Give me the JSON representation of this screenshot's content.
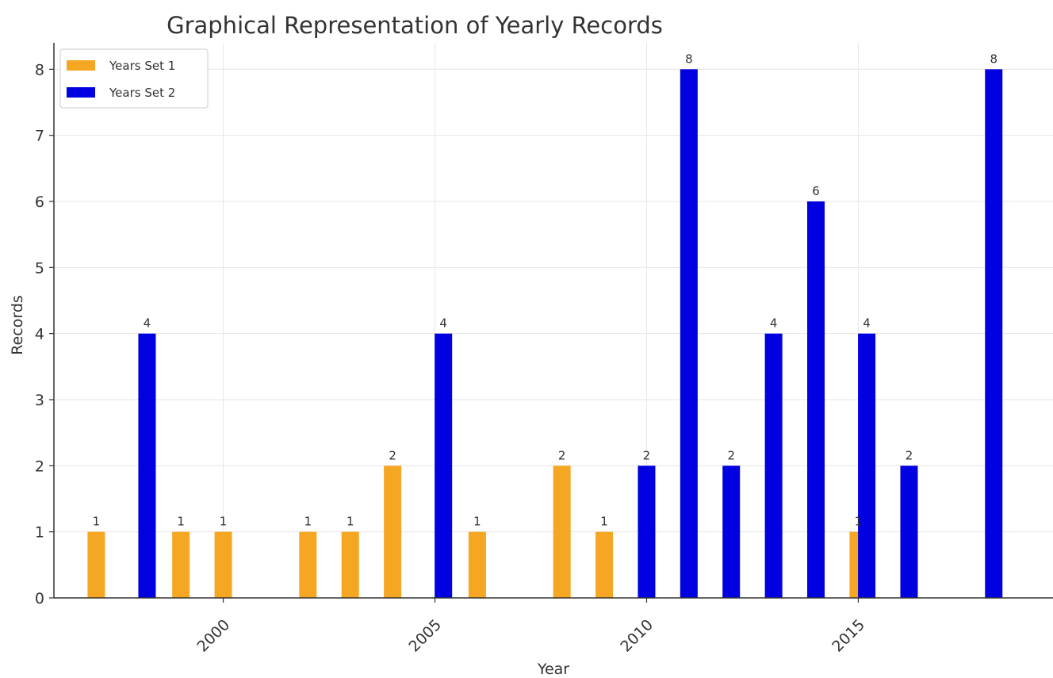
{
  "chart_data": {
    "type": "bar",
    "title": "Graphical Representation of Yearly Records",
    "xlabel": "Year",
    "ylabel": "Records",
    "xlim": [
      1996,
      2019.6
    ],
    "ylim": [
      0,
      8.4
    ],
    "x_ticks": [
      2000,
      2005,
      2010,
      2015
    ],
    "y_ticks": [
      0,
      1,
      2,
      3,
      4,
      5,
      6,
      7,
      8
    ],
    "grid": true,
    "legend_position": "top-left",
    "series": [
      {
        "name": "Years Set 1",
        "color": "#F5A623",
        "points": [
          {
            "x": 1997,
            "y": 1
          },
          {
            "x": 1999,
            "y": 1
          },
          {
            "x": 2000,
            "y": 1
          },
          {
            "x": 2002,
            "y": 1
          },
          {
            "x": 2003,
            "y": 1
          },
          {
            "x": 2004,
            "y": 2
          },
          {
            "x": 2006,
            "y": 1
          },
          {
            "x": 2008,
            "y": 2
          },
          {
            "x": 2009,
            "y": 1
          },
          {
            "x": 2015,
            "y": 1
          }
        ]
      },
      {
        "name": "Years Set 2",
        "color": "#0000E0",
        "points": [
          {
            "x": 1998.2,
            "y": 4
          },
          {
            "x": 2005.2,
            "y": 4
          },
          {
            "x": 2010,
            "y": 2
          },
          {
            "x": 2011,
            "y": 8
          },
          {
            "x": 2012,
            "y": 2
          },
          {
            "x": 2013,
            "y": 4
          },
          {
            "x": 2014,
            "y": 6
          },
          {
            "x": 2015.2,
            "y": 4
          },
          {
            "x": 2016.2,
            "y": 2
          },
          {
            "x": 2018.2,
            "y": 8
          }
        ]
      }
    ]
  }
}
